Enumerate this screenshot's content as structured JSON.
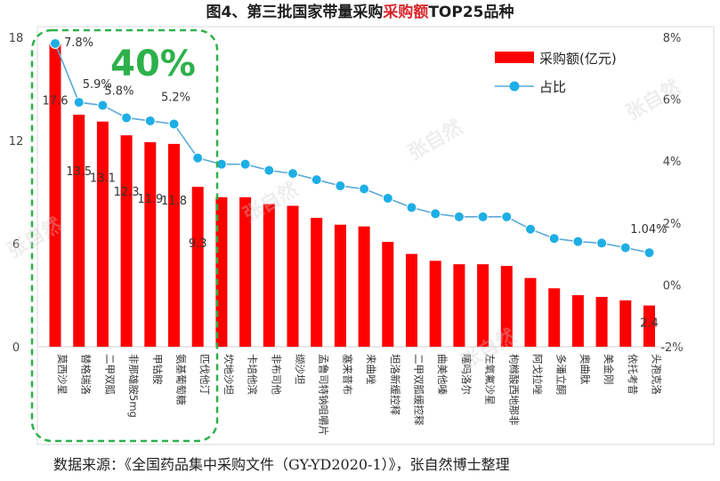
{
  "title": {
    "prefix": "图4、第三批国家带量采购",
    "highlight": "采购额",
    "suffix": "TOP25品种"
  },
  "source": "数据来源：《全国药品集中采购文件（GY-YD2020-1）》，张自然博士整理",
  "watermarks": [
    "张自然",
    "张自然",
    "张自然",
    "张自然",
    "张自然"
  ],
  "highlight_box": {
    "label": "40%"
  },
  "colors": {
    "bar": "#ff0000",
    "line": "#5aa9d6",
    "point": "#1eaee6",
    "highlight": "#2db14a",
    "title_highlight": "#d9262c"
  },
  "chart_data": {
    "type": "bar",
    "title": "图4、第三批国家带量采购采购额TOP25品种",
    "categories": [
      "莫西沙星",
      "替格瑞洛",
      "二甲双胍",
      "非那雄胺5mg",
      "甲钴胺",
      "氨基葡萄糖",
      "匹伐他汀",
      "坎地沙坦",
      "卡培他滨",
      "非布司他",
      "缬沙坦",
      "孟鲁司特钠咀嚼片",
      "塞来昔布",
      "来曲唑",
      "坦洛新缓控释",
      "二甲双胍缓控释",
      "曲美他嗪",
      "噻吗洛尔",
      "左氧氟沙星",
      "枸橼酸西地那非",
      "阿戈拉唑",
      "多潘立酮",
      "奥曲肽",
      "美金刚",
      "依托考昔",
      "头孢克洛"
    ],
    "series": [
      {
        "name": "采购额(亿元)",
        "axis": "left",
        "values": [
          17.6,
          13.5,
          13.1,
          12.3,
          11.9,
          11.8,
          9.3,
          8.7,
          8.7,
          8.3,
          8.2,
          7.5,
          7.1,
          7.0,
          6.1,
          5.4,
          5.0,
          4.8,
          4.8,
          4.7,
          4.0,
          3.4,
          3.0,
          2.9,
          2.7,
          2.4
        ]
      },
      {
        "name": "占比",
        "axis": "right",
        "type": "line",
        "values": [
          7.8,
          5.9,
          5.8,
          5.4,
          5.3,
          5.2,
          4.1,
          3.9,
          3.9,
          3.7,
          3.6,
          3.4,
          3.2,
          3.1,
          2.8,
          2.5,
          2.3,
          2.2,
          2.2,
          2.2,
          1.8,
          1.5,
          1.4,
          1.35,
          1.2,
          1.04
        ]
      }
    ],
    "bar_labels": [
      {
        "index": 0,
        "text": "17.6"
      },
      {
        "index": 1,
        "text": "13.5"
      },
      {
        "index": 2,
        "text": "13.1"
      },
      {
        "index": 3,
        "text": "12.3"
      },
      {
        "index": 4,
        "text": "11.9"
      },
      {
        "index": 5,
        "text": "11.8"
      },
      {
        "index": 6,
        "text": "9.3"
      },
      {
        "index": 25,
        "text": "2.4"
      }
    ],
    "point_labels": [
      {
        "index": 0,
        "text": "7.8%"
      },
      {
        "index": 1,
        "text": "5.9%"
      },
      {
        "index": 2,
        "text": "5.8%"
      },
      {
        "index": 5,
        "text": "5.2%"
      },
      {
        "index": 25,
        "text": "1.04%"
      }
    ],
    "y_left": {
      "min": 0,
      "max": 18,
      "ticks": [
        "0",
        "6",
        "12",
        "18"
      ]
    },
    "y_right": {
      "min": -2,
      "max": 8,
      "ticks": [
        "-2%",
        "0%",
        "2%",
        "4%",
        "6%",
        "8%"
      ]
    },
    "legend": {
      "position": "top-right",
      "entries": [
        "采购额(亿元)",
        "占比"
      ]
    },
    "grid": false
  }
}
